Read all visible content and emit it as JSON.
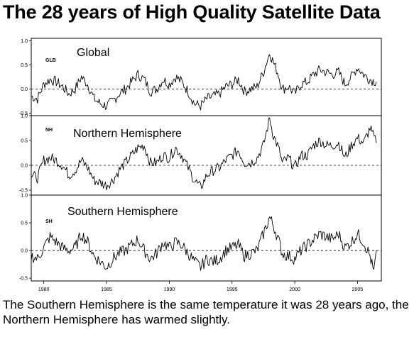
{
  "title": "The 28 years of High Quality Satellite Data",
  "caption": "The Southern Hemisphere is the same temperature it was 28 years ago, the Northern Hemisphere has warmed slightly.",
  "chart_data": {
    "type": "line",
    "x_ticks": [
      "1980",
      "1985",
      "1990",
      "1995",
      "2000",
      "2005"
    ],
    "xlim": [
      1979.0,
      2006.9
    ],
    "grid": false,
    "reference_line": 0.0,
    "panels": [
      {
        "code": "GLB",
        "label": "Global",
        "ylim": [
          -0.55,
          1.05
        ],
        "y_ticks": [
          "1.0",
          "0.5",
          "0.0",
          "-0.5"
        ],
        "series": {
          "x": [
            1979.0,
            1979.5,
            1980.0,
            1980.5,
            1981.0,
            1981.5,
            1982.0,
            1982.5,
            1983.0,
            1983.5,
            1984.0,
            1984.5,
            1985.0,
            1985.5,
            1986.0,
            1986.5,
            1987.0,
            1987.5,
            1988.0,
            1988.5,
            1989.0,
            1989.5,
            1990.0,
            1990.5,
            1991.0,
            1991.5,
            1992.0,
            1992.5,
            1993.0,
            1993.5,
            1994.0,
            1994.5,
            1995.0,
            1995.5,
            1996.0,
            1996.5,
            1997.0,
            1997.5,
            1998.0,
            1998.3,
            1998.7,
            1999.0,
            1999.5,
            2000.0,
            2000.5,
            2001.0,
            2001.5,
            2002.0,
            2002.5,
            2003.0,
            2003.5,
            2004.0,
            2004.5,
            2005.0,
            2005.5,
            2006.0,
            2006.5
          ],
          "y": [
            -0.15,
            -0.2,
            0.1,
            0.2,
            0.15,
            0.05,
            -0.1,
            0.0,
            0.25,
            0.1,
            -0.2,
            -0.3,
            -0.35,
            -0.25,
            -0.1,
            0.0,
            0.15,
            0.3,
            0.2,
            -0.05,
            0.0,
            0.2,
            0.1,
            0.25,
            0.15,
            -0.05,
            -0.3,
            -0.35,
            -0.2,
            -0.15,
            -0.1,
            0.05,
            0.1,
            0.2,
            -0.05,
            0.0,
            0.05,
            0.35,
            0.75,
            0.55,
            0.3,
            0.0,
            0.05,
            -0.1,
            0.1,
            0.15,
            0.3,
            0.4,
            0.35,
            0.3,
            0.35,
            0.1,
            0.25,
            0.45,
            0.3,
            0.2,
            0.15
          ]
        }
      },
      {
        "code": "NH",
        "label": "Northern Hemisphere",
        "ylim": [
          -0.6,
          1.0
        ],
        "y_ticks": [
          "1.0",
          "0.5",
          "0.0",
          "-0.5"
        ],
        "series": {
          "x": [
            1979.0,
            1979.5,
            1980.0,
            1980.5,
            1981.0,
            1981.5,
            1982.0,
            1982.5,
            1983.0,
            1983.5,
            1984.0,
            1984.5,
            1985.0,
            1985.5,
            1986.0,
            1986.5,
            1987.0,
            1987.5,
            1988.0,
            1988.5,
            1989.0,
            1989.5,
            1990.0,
            1990.5,
            1991.0,
            1991.5,
            1992.0,
            1992.5,
            1993.0,
            1993.5,
            1994.0,
            1994.5,
            1995.0,
            1995.5,
            1996.0,
            1996.5,
            1997.0,
            1997.5,
            1998.0,
            1998.3,
            1998.7,
            1999.0,
            1999.5,
            2000.0,
            2000.5,
            2001.0,
            2001.5,
            2002.0,
            2002.5,
            2003.0,
            2003.5,
            2004.0,
            2004.5,
            2005.0,
            2005.5,
            2006.0,
            2006.5
          ],
          "y": [
            -0.2,
            -0.25,
            0.1,
            0.15,
            0.1,
            0.0,
            -0.2,
            -0.1,
            0.1,
            -0.05,
            -0.3,
            -0.35,
            -0.4,
            -0.3,
            -0.1,
            0.05,
            0.2,
            0.35,
            0.4,
            0.05,
            0.05,
            0.2,
            0.15,
            0.35,
            0.2,
            -0.05,
            -0.3,
            -0.45,
            -0.2,
            -0.1,
            -0.05,
            0.1,
            0.2,
            0.3,
            0.05,
            0.05,
            0.15,
            0.4,
            0.95,
            0.6,
            0.35,
            0.05,
            0.15,
            -0.05,
            0.2,
            0.2,
            0.4,
            0.5,
            0.4,
            0.4,
            0.45,
            0.15,
            0.4,
            0.55,
            0.45,
            0.75,
            0.45
          ]
        }
      },
      {
        "code": "SH",
        "label": "Southern Hemisphere",
        "ylim": [
          -0.55,
          1.0
        ],
        "y_ticks": [
          "1.0",
          "0.5",
          "0.0",
          "-0.5"
        ],
        "series": {
          "x": [
            1979.0,
            1979.5,
            1980.0,
            1980.5,
            1981.0,
            1981.5,
            1982.0,
            1982.5,
            1983.0,
            1983.5,
            1984.0,
            1984.5,
            1985.0,
            1985.5,
            1986.0,
            1986.5,
            1987.0,
            1987.5,
            1988.0,
            1988.5,
            1989.0,
            1989.5,
            1990.0,
            1990.5,
            1991.0,
            1991.5,
            1992.0,
            1992.5,
            1993.0,
            1993.5,
            1994.0,
            1994.5,
            1995.0,
            1995.5,
            1996.0,
            1996.5,
            1997.0,
            1997.5,
            1998.0,
            1998.3,
            1998.7,
            1999.0,
            1999.5,
            2000.0,
            2000.5,
            2001.0,
            2001.5,
            2002.0,
            2002.5,
            2003.0,
            2003.5,
            2004.0,
            2004.5,
            2005.0,
            2005.5,
            2006.0,
            2006.3,
            2006.5
          ],
          "y": [
            -0.1,
            -0.15,
            0.05,
            0.25,
            0.15,
            0.05,
            0.0,
            0.05,
            0.3,
            0.15,
            -0.1,
            -0.2,
            -0.3,
            -0.15,
            -0.05,
            0.0,
            0.1,
            0.2,
            0.0,
            -0.15,
            -0.05,
            0.15,
            0.05,
            0.15,
            0.1,
            -0.05,
            -0.2,
            -0.3,
            -0.15,
            -0.2,
            -0.15,
            0.0,
            0.05,
            0.1,
            -0.1,
            -0.05,
            0.0,
            0.3,
            0.6,
            0.45,
            0.2,
            -0.05,
            -0.1,
            -0.15,
            0.0,
            0.1,
            0.2,
            0.3,
            0.25,
            0.2,
            0.3,
            0.05,
            0.15,
            0.3,
            0.15,
            -0.1,
            -0.4,
            0.0
          ]
        }
      }
    ]
  }
}
